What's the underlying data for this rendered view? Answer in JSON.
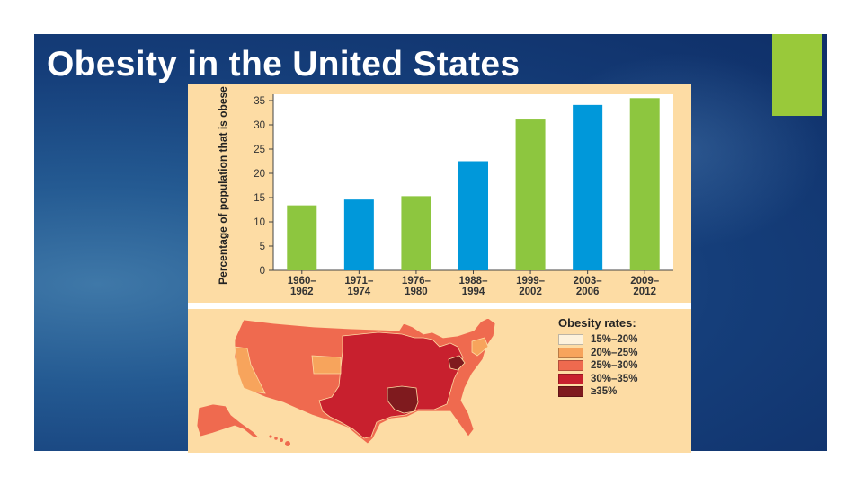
{
  "slide": {
    "title": "Obesity in the United States",
    "accent_color": "#99c93a"
  },
  "chart_data": {
    "type": "bar",
    "ylabel": "Percentage of population that is obese",
    "xlabel": "",
    "ylim": [
      0,
      35
    ],
    "yticks": [
      0,
      5,
      10,
      15,
      20,
      25,
      30,
      35
    ],
    "grid": false,
    "categories": [
      [
        "1960–",
        "1962"
      ],
      [
        "1971–",
        "1974"
      ],
      [
        "1976–",
        "1980"
      ],
      [
        "1988–",
        "1994"
      ],
      [
        "1999–",
        "2002"
      ],
      [
        "2003–",
        "2006"
      ],
      [
        "2009–",
        "2012"
      ]
    ],
    "values": [
      13.4,
      14.6,
      15.3,
      22.5,
      31.1,
      34.1,
      35.5
    ],
    "bar_colors": [
      "#8dc63f",
      "#0098da",
      "#8dc63f",
      "#0098da",
      "#8dc63f",
      "#0098da",
      "#8dc63f"
    ]
  },
  "map": {
    "legend_title": "Obesity rates:",
    "legend": [
      {
        "label": "15%–20%",
        "color": "#fdf2dc"
      },
      {
        "label": "20%–25%",
        "color": "#f7a45c"
      },
      {
        "label": "25%–30%",
        "color": "#ef6a4f"
      },
      {
        "label": "30%–35%",
        "color": "#c8202e"
      },
      {
        "label": "≥35%",
        "color": "#7f1a1e"
      }
    ]
  }
}
